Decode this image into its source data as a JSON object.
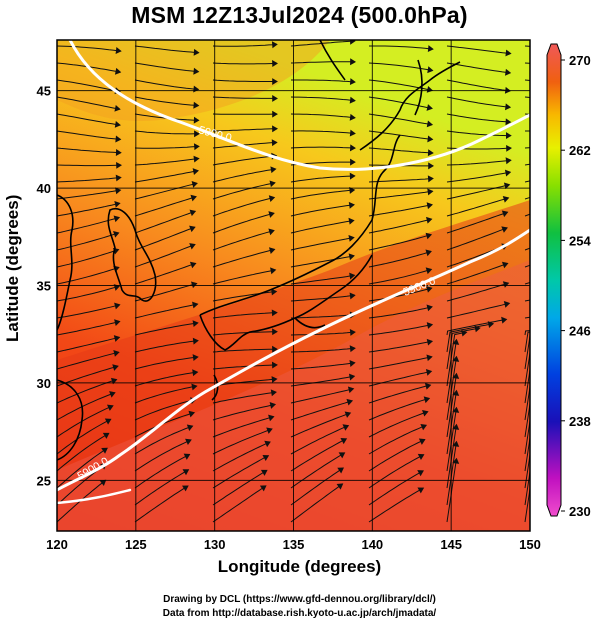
{
  "title": "MSM 12Z13Jul2024 (500.0hPa)",
  "xlabel": "Longitude (degrees)",
  "ylabel": "Latitude  (degrees)",
  "credits": {
    "line1": "Drawing by DCL (https://www.gfd-dennou.org/library/dcl/)",
    "line2": "Data from http://database.rish.kyoto-u.ac.jp/arch/jmadata/"
  },
  "map": {
    "lon_range": [
      120,
      150
    ],
    "lat_range": [
      22.4,
      47.6
    ],
    "lon_ticks": [
      120,
      125,
      130,
      135,
      140,
      145,
      150
    ],
    "lat_ticks": [
      25,
      30,
      35,
      40,
      45
    ],
    "contour_label": "5900.0",
    "contour_color": "#ffffff",
    "colorbar": {
      "min": 230,
      "max": 270,
      "tick_labels": [
        "270",
        "262",
        "254",
        "246",
        "238",
        "230"
      ],
      "colors": [
        "#e000c0",
        "#1000b0",
        "#0080ff",
        "#00d0c0",
        "#00c040",
        "#80e000",
        "#f0f000",
        "#f8b000",
        "#f05000",
        "#e82020",
        "#f07080"
      ]
    }
  }
}
